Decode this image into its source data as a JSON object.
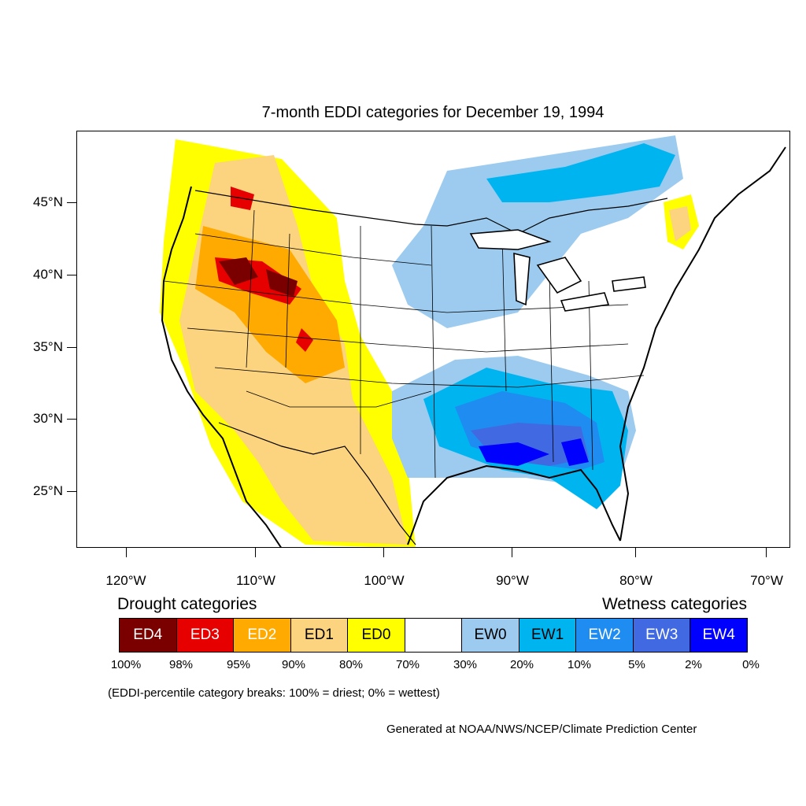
{
  "title": "7-month EDDI categories for December 19, 1994",
  "map": {
    "lat_labels": [
      "45°N",
      "40°N",
      "35°N",
      "30°N",
      "25°N"
    ],
    "lon_labels": [
      "120°W",
      "110°W",
      "100°W",
      "90°W",
      "80°W",
      "70°W"
    ]
  },
  "legend": {
    "drought_label": "Drought categories",
    "wetness_label": "Wetness categories",
    "categories": [
      {
        "label": "ED4",
        "color": "#7a0000",
        "text_color": "#ffffff"
      },
      {
        "label": "ED3",
        "color": "#e60000",
        "text_color": "#ffffff"
      },
      {
        "label": "ED2",
        "color": "#ffaa00",
        "text_color": "#ffffff"
      },
      {
        "label": "ED1",
        "color": "#fcd37f",
        "text_color": "#000000"
      },
      {
        "label": "ED0",
        "color": "#ffff00",
        "text_color": "#000000"
      },
      {
        "label": "",
        "color": "#ffffff",
        "text_color": "#000000"
      },
      {
        "label": "EW0",
        "color": "#9ccbef",
        "text_color": "#000000"
      },
      {
        "label": "EW1",
        "color": "#00b4f0",
        "text_color": "#000000"
      },
      {
        "label": "EW2",
        "color": "#1e8cf0",
        "text_color": "#ffffff"
      },
      {
        "label": "EW3",
        "color": "#4169e1",
        "text_color": "#ffffff"
      },
      {
        "label": "EW4",
        "color": "#0000ff",
        "text_color": "#ffffff"
      }
    ],
    "breaks": [
      "100%",
      "98%",
      "95%",
      "90%",
      "80%",
      "70%",
      "30%",
      "20%",
      "10%",
      "5%",
      "2%",
      "0%"
    ]
  },
  "caption": "(EDDI-percentile category breaks: 100% = driest; 0% = wettest)",
  "credit": "Generated at NOAA/NWS/NCEP/Climate Prediction Center"
}
